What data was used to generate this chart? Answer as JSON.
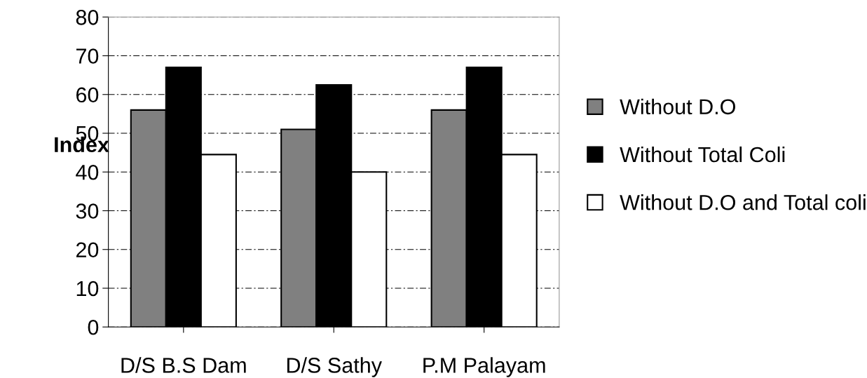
{
  "chart_data": {
    "type": "bar",
    "ylabel": "Index",
    "categories": [
      "D/S B.S Dam",
      "D/S Sathy",
      "P.M Palayam"
    ],
    "series": [
      {
        "name": "Without D.O",
        "color": "#808080",
        "values": [
          56,
          51,
          56
        ]
      },
      {
        "name": "Without Total Coli",
        "color": "#000000",
        "values": [
          67,
          62.5,
          67
        ]
      },
      {
        "name": "Without D.O and Total coli",
        "color": "#ffffff",
        "values": [
          44.5,
          40,
          44.5
        ]
      }
    ],
    "ylim": [
      0,
      80
    ],
    "yticks": [
      0,
      10,
      20,
      30,
      40,
      50,
      60,
      70,
      80
    ],
    "grid": "y",
    "legend": "right"
  }
}
